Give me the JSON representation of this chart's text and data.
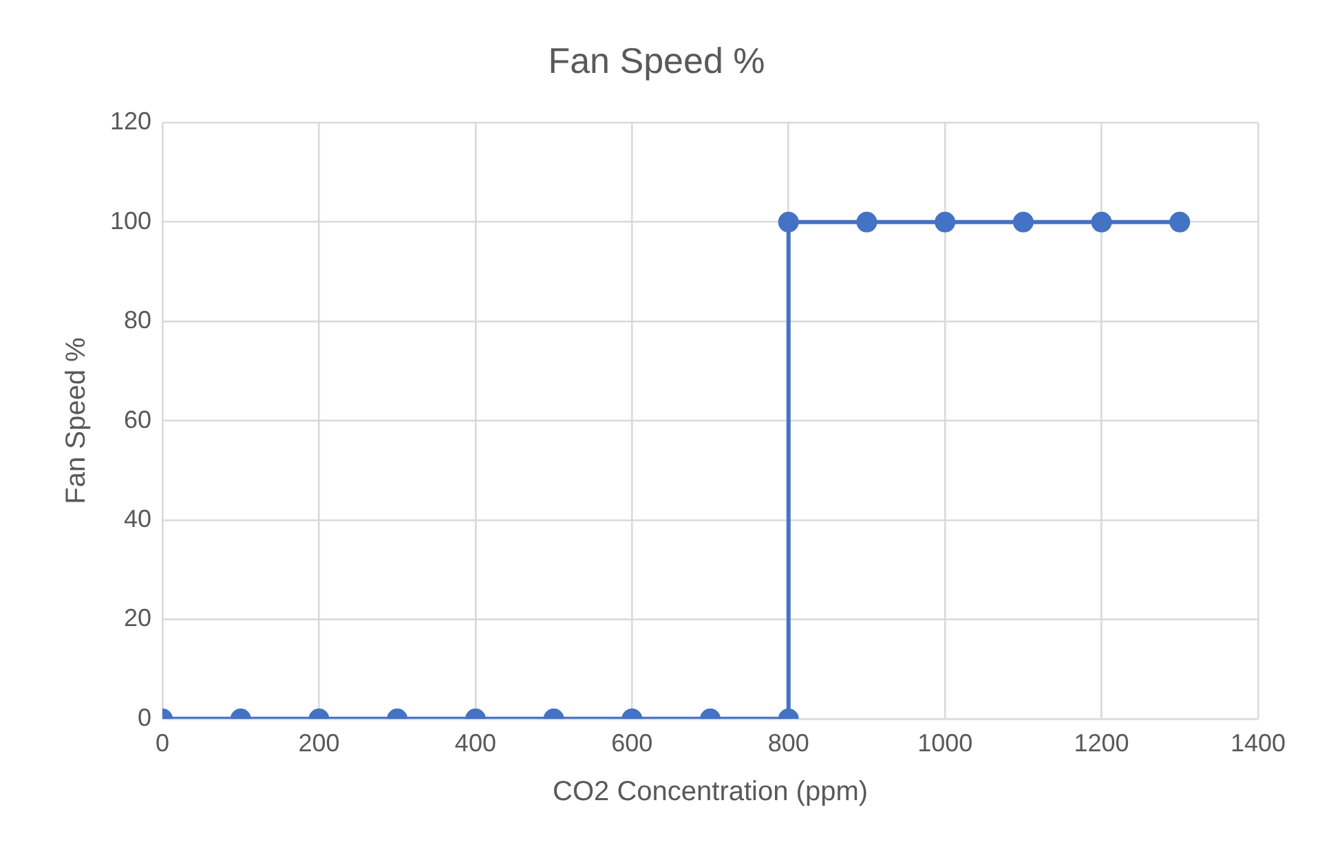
{
  "chart_data": {
    "type": "line",
    "title": "Fan Speed %",
    "xlabel": "CO2 Concentration (ppm)",
    "ylabel": "Fan Speed %",
    "x": [
      0,
      100,
      200,
      300,
      400,
      500,
      600,
      700,
      800,
      800,
      900,
      1000,
      1100,
      1200,
      1300
    ],
    "values": [
      0,
      0,
      0,
      0,
      0,
      0,
      0,
      0,
      0,
      100,
      100,
      100,
      100,
      100,
      100
    ],
    "color": "#4472c4",
    "marker": "circle",
    "line_style": "solid",
    "grid": true,
    "xlim": [
      0,
      1400
    ],
    "xticks": [
      0,
      200,
      400,
      600,
      800,
      1000,
      1200,
      1400
    ],
    "ylim": [
      0,
      120
    ],
    "yticks": [
      0,
      20,
      40,
      60,
      80,
      100,
      120
    ]
  }
}
